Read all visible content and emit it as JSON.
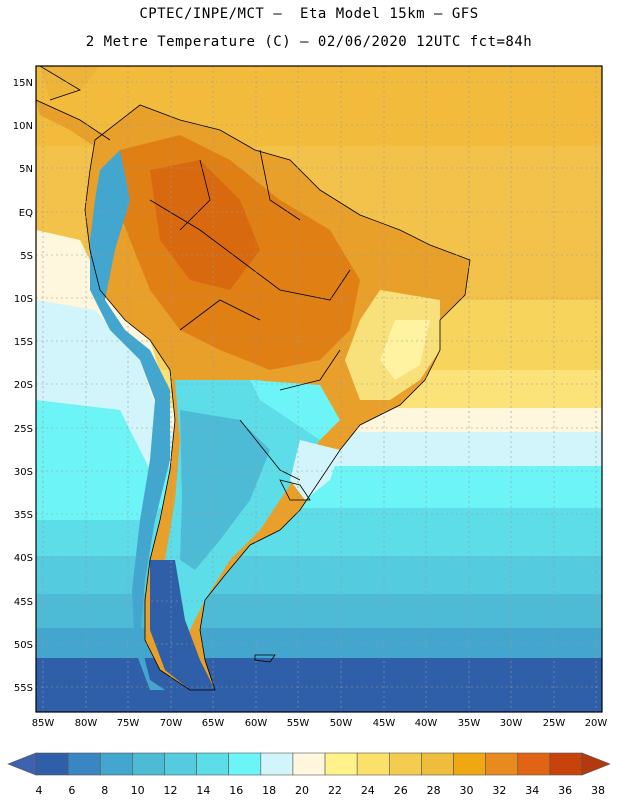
{
  "header": {
    "line1": "CPTEC/INPE/MCT –  Eta Model 15km – GFS",
    "line2": "2 Metre Temperature (C) – 02/06/2020 12UTC fct=84h"
  },
  "map": {
    "lat_labels": [
      "15N",
      "10N",
      "5N",
      "EQ",
      "5S",
      "10S",
      "15S",
      "20S",
      "25S",
      "30S",
      "35S",
      "40S",
      "45S",
      "50S",
      "55S"
    ],
    "lon_labels": [
      "85W",
      "80W",
      "75W",
      "70W",
      "65W",
      "60W",
      "55W",
      "50W",
      "45W",
      "40W",
      "35W",
      "30W",
      "25W",
      "20W"
    ]
  },
  "colorbar": {
    "labels": [
      "4",
      "6",
      "8",
      "10",
      "12",
      "14",
      "16",
      "18",
      "20",
      "22",
      "24",
      "26",
      "28",
      "30",
      "32",
      "34",
      "36",
      "38"
    ],
    "colors": [
      "#2f5fa8",
      "#3a86c2",
      "#43a6cf",
      "#4ebbd6",
      "#55cbdf",
      "#5ddde8",
      "#6cf4f6",
      "#d2f4fb",
      "#fff6de",
      "#fff28a",
      "#fbe06a",
      "#f4cc52",
      "#eebd3c",
      "#f0a812",
      "#e88a1e",
      "#e06414",
      "#c8420c"
    ],
    "low_color": "#3d63b0",
    "high_color": "#b5380e"
  }
}
